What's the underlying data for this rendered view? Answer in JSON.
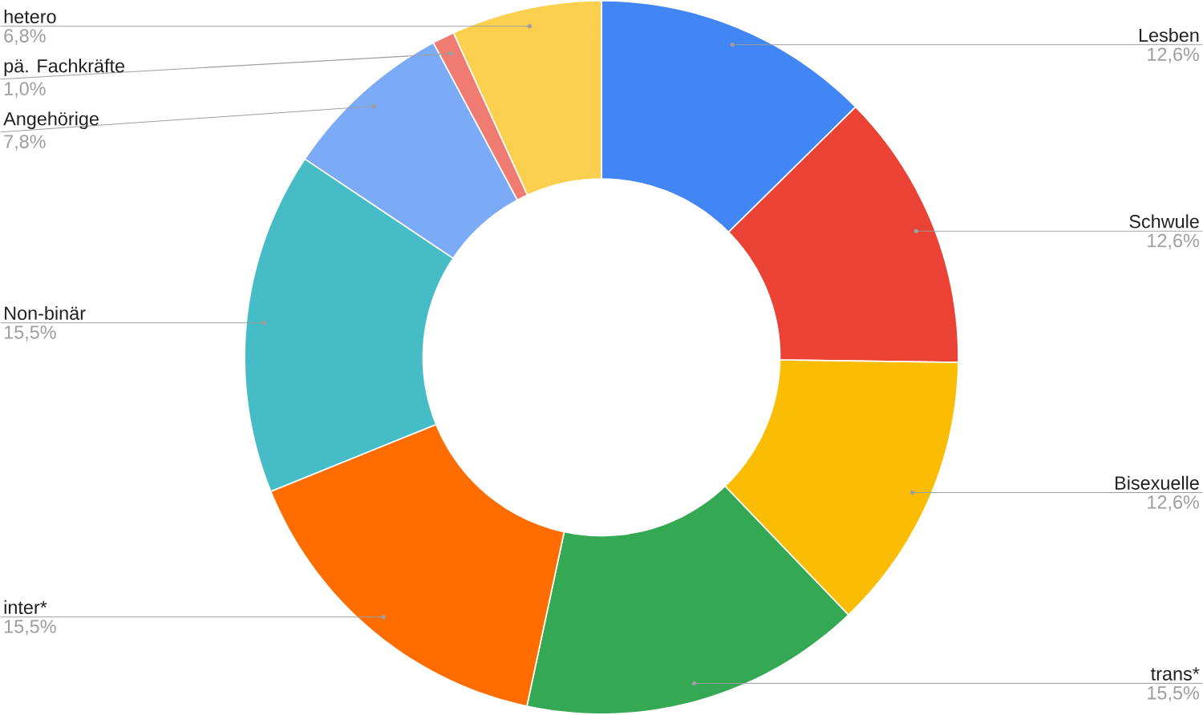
{
  "chart_data": {
    "type": "donut",
    "categories": [
      "Lesben",
      "Schwule",
      "Bisexuelle",
      "trans*",
      "inter*",
      "Non-binär",
      "Angehörige",
      "pä. Fachkräfte",
      "hetero"
    ],
    "values": [
      12.6,
      12.6,
      12.6,
      15.5,
      15.5,
      15.5,
      7.8,
      1.0,
      6.8
    ],
    "colors": [
      "#4285f4",
      "#ea4335",
      "#fbbc04",
      "#34a853",
      "#ff6d01",
      "#46bdc6",
      "#7baaf7",
      "#f07b72",
      "#fcd04f"
    ],
    "value_labels": [
      "12,6%",
      "12,6%",
      "12,6%",
      "15,5%",
      "15,5%",
      "15,5%",
      "7,8%",
      "1,0%",
      "6,8%"
    ]
  }
}
